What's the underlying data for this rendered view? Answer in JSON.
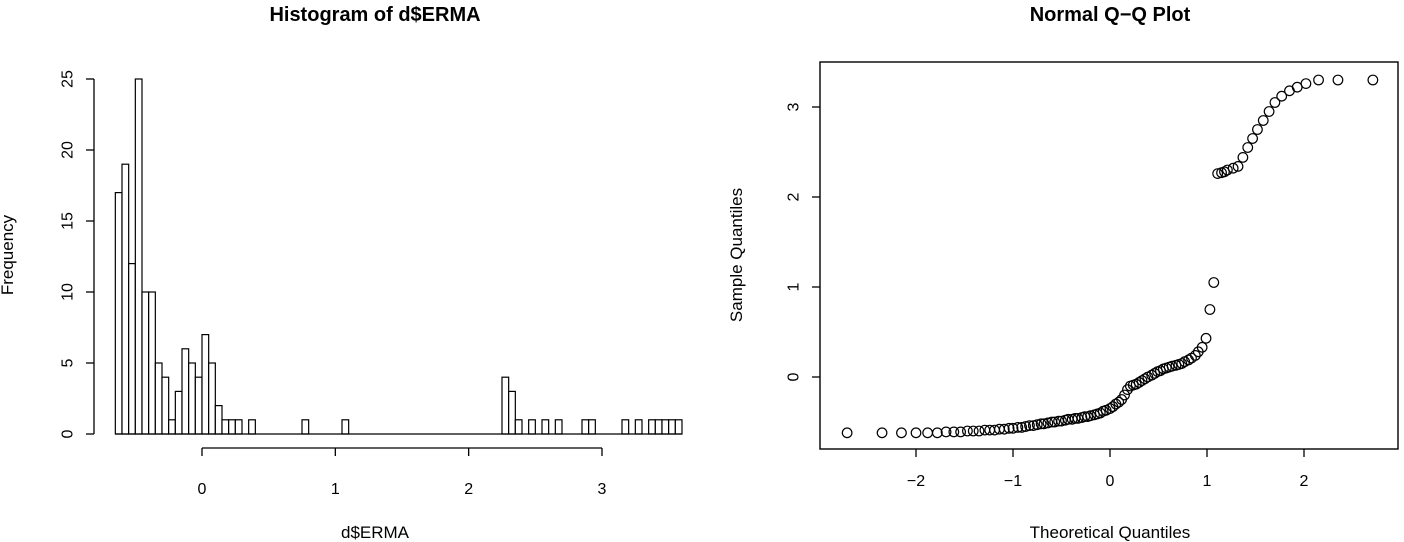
{
  "chart_data": [
    {
      "type": "bar",
      "title": "Histogram of d$ERMA",
      "xlabel": "d$ERMA",
      "ylabel": "Frequency",
      "xlim": [
        -0.65,
        3.35
      ],
      "ylim": [
        0,
        25
      ],
      "x_ticks": [
        0,
        1,
        2,
        3
      ],
      "y_ticks": [
        0,
        5,
        10,
        15,
        20,
        25
      ],
      "bin_width": 0.05,
      "bin_start": -0.65,
      "counts": [
        17,
        19,
        12,
        25,
        10,
        10,
        5,
        4,
        1,
        3,
        6,
        5,
        4,
        7,
        5,
        2,
        1,
        1,
        1,
        0,
        1,
        0,
        0,
        0,
        0,
        0,
        0,
        0,
        1,
        0,
        0,
        0,
        0,
        0,
        1,
        0,
        0,
        0,
        0,
        0,
        0,
        0,
        0,
        0,
        0,
        0,
        0,
        0,
        0,
        0,
        0,
        0,
        0,
        0,
        0,
        0,
        0,
        0,
        4,
        3,
        1,
        0,
        1,
        0,
        1,
        0,
        1,
        0,
        0,
        0,
        1,
        1,
        0,
        0,
        0,
        0,
        1,
        0,
        1,
        0,
        1,
        1,
        1,
        1,
        1
      ]
    },
    {
      "type": "scatter",
      "title": "Normal Q−Q Plot",
      "xlabel": "Theoretical Quantiles",
      "ylabel": "Sample Quantiles",
      "xlim": [
        -2.8,
        2.8
      ],
      "ylim": [
        -0.65,
        3.35
      ],
      "x_ticks": [
        -2,
        -1,
        0,
        1,
        2
      ],
      "y_ticks": [
        0,
        1,
        2,
        3
      ],
      "x_tick_labels": [
        "−2",
        "−1",
        "0",
        "1",
        "2"
      ],
      "marker": "open-circle",
      "x": [
        -2.71,
        -2.35,
        -2.15,
        -2.0,
        -1.88,
        -1.78,
        -1.69,
        -1.61,
        -1.54,
        -1.47,
        -1.41,
        -1.35,
        -1.29,
        -1.24,
        -1.19,
        -1.14,
        -1.09,
        -1.04,
        -1.0,
        -0.95,
        -0.91,
        -0.87,
        -0.83,
        -0.79,
        -0.75,
        -0.71,
        -0.68,
        -0.64,
        -0.6,
        -0.57,
        -0.53,
        -0.5,
        -0.46,
        -0.43,
        -0.39,
        -0.36,
        -0.33,
        -0.29,
        -0.26,
        -0.23,
        -0.2,
        -0.16,
        -0.13,
        -0.1,
        -0.07,
        -0.04,
        0.0,
        0.03,
        0.06,
        0.09,
        0.12,
        0.15,
        0.18,
        0.21,
        0.24,
        0.27,
        0.3,
        0.33,
        0.36,
        0.39,
        0.43,
        0.46,
        0.49,
        0.52,
        0.55,
        0.58,
        0.61,
        0.64,
        0.68,
        0.71,
        0.74,
        0.77,
        0.81,
        0.84,
        0.88,
        0.91,
        0.95,
        0.99,
        1.03,
        1.07,
        1.11,
        1.15,
        1.18,
        1.21,
        1.27,
        1.32,
        1.37,
        1.42,
        1.47,
        1.52,
        1.58,
        1.64,
        1.7,
        1.77,
        1.85,
        1.93,
        2.02,
        2.15,
        2.35,
        2.71
      ],
      "y": [
        -0.62,
        -0.62,
        -0.62,
        -0.62,
        -0.62,
        -0.62,
        -0.61,
        -0.61,
        -0.61,
        -0.6,
        -0.6,
        -0.6,
        -0.59,
        -0.59,
        -0.59,
        -0.58,
        -0.58,
        -0.57,
        -0.57,
        -0.56,
        -0.56,
        -0.55,
        -0.54,
        -0.54,
        -0.53,
        -0.52,
        -0.52,
        -0.51,
        -0.5,
        -0.5,
        -0.49,
        -0.49,
        -0.48,
        -0.47,
        -0.47,
        -0.46,
        -0.46,
        -0.45,
        -0.44,
        -0.44,
        -0.43,
        -0.42,
        -0.41,
        -0.4,
        -0.38,
        -0.37,
        -0.35,
        -0.33,
        -0.3,
        -0.28,
        -0.25,
        -0.2,
        -0.14,
        -0.1,
        -0.09,
        -0.08,
        -0.06,
        -0.04,
        -0.02,
        0.0,
        0.02,
        0.04,
        0.06,
        0.07,
        0.09,
        0.1,
        0.11,
        0.12,
        0.13,
        0.14,
        0.15,
        0.17,
        0.19,
        0.21,
        0.24,
        0.28,
        0.33,
        0.43,
        0.75,
        1.05,
        2.26,
        2.27,
        2.28,
        2.3,
        2.32,
        2.34,
        2.44,
        2.55,
        2.65,
        2.75,
        2.85,
        2.95,
        3.05,
        3.12,
        3.18,
        3.22,
        3.26,
        3.3,
        3.3,
        3.3
      ]
    }
  ]
}
